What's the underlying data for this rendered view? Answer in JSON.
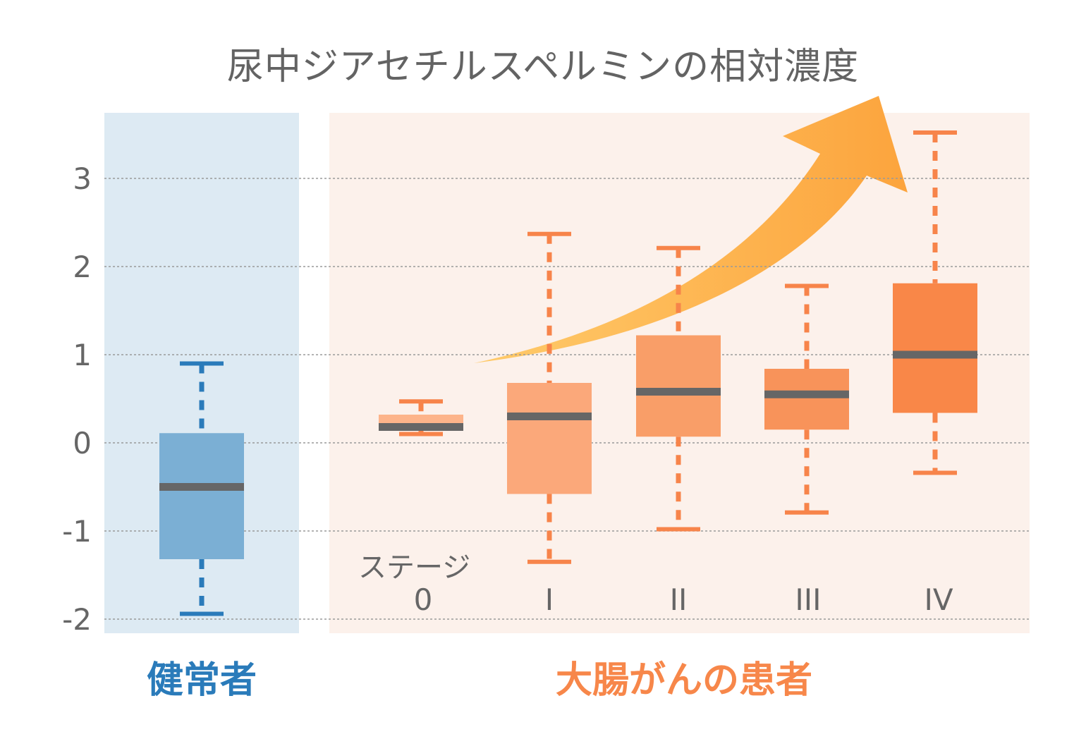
{
  "title": "尿中ジアセチルスペルミンの相対濃度",
  "colors": {
    "healthy_panel": "#DDEAF3",
    "cancer_panel": "#FCF1EB",
    "healthy_box": "#7BAFD4",
    "healthy_whisker": "#2A7BBA",
    "cancer_whisker": "#F7844A",
    "median": "#666666",
    "grid": "#9A9A9A",
    "arrow_start": "#FFCB6B",
    "arrow_end": "#FCA43D",
    "healthy_label": "#2A7BBA",
    "cancer_label": "#F7874A"
  },
  "axis": {
    "ticks": [
      "3",
      "2",
      "1",
      "0",
      "-1",
      "-2"
    ]
  },
  "x_axis": {
    "caption": "ステージ",
    "ticks": [
      "0",
      "I",
      "II",
      "III",
      "IV"
    ]
  },
  "groups": {
    "healthy": "健常者",
    "cancer": "大腸がんの患者"
  },
  "chart_data": {
    "type": "box",
    "title": "尿中ジアセチルスペルミンの相対濃度",
    "xlabel": "ステージ",
    "ylabel": "",
    "ylim": [
      -2.15,
      3.75
    ],
    "yticks": [
      -2,
      -1,
      0,
      1,
      2,
      3
    ],
    "grid": true,
    "group_labels": [
      "健常者",
      "大腸がんの患者"
    ],
    "categories": [
      "健常者",
      "0",
      "I",
      "II",
      "III",
      "IV"
    ],
    "series": [
      {
        "name": "健常者",
        "group": "健常者",
        "whisker_low": -1.94,
        "q1": -1.32,
        "median": -0.5,
        "q3": 0.11,
        "whisker_high": 0.9,
        "color": "#7BAFD4"
      },
      {
        "name": "0",
        "group": "大腸がんの患者",
        "whisker_low": 0.1,
        "q1": 0.14,
        "median": 0.18,
        "q3": 0.32,
        "whisker_high": 0.47,
        "color": "#FDB48A"
      },
      {
        "name": "I",
        "group": "大腸がんの患者",
        "whisker_low": -1.35,
        "q1": -0.58,
        "median": 0.3,
        "q3": 0.68,
        "whisker_high": 2.37,
        "color": "#FBA87A"
      },
      {
        "name": "II",
        "group": "大腸がんの患者",
        "whisker_low": -0.98,
        "q1": 0.07,
        "median": 0.58,
        "q3": 1.22,
        "whisker_high": 2.21,
        "color": "#F99E68"
      },
      {
        "name": "III",
        "group": "大腸がんの患者",
        "whisker_low": -0.79,
        "q1": 0.15,
        "median": 0.55,
        "q3": 0.84,
        "whisker_high": 1.78,
        "color": "#F8935A"
      },
      {
        "name": "IV",
        "group": "大腸がんの患者",
        "whisker_low": -0.34,
        "q1": 0.34,
        "median": 1.0,
        "q3": 1.81,
        "whisker_high": 3.52,
        "color": "#F98748"
      }
    ],
    "annotations": [
      "rising trend arrow from stage 0 to stage IV"
    ]
  }
}
